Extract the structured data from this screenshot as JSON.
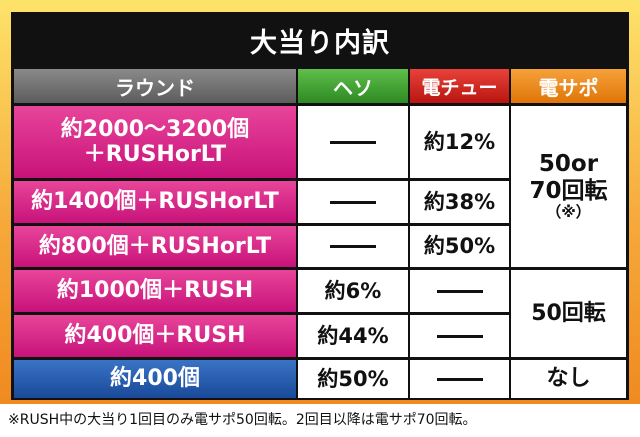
{
  "title": "大当り内訳",
  "headers": {
    "round": "ラウンド",
    "heso": "ヘソ",
    "den_chu": "電チュー",
    "den_sapo": "電サポ"
  },
  "rows": [
    {
      "label_line1": "約2000〜3200個",
      "label_line2": "＋RUSHorLT",
      "heso": "",
      "den_chu": "約12%"
    },
    {
      "label_line1": "約1400個＋RUSHorLT",
      "heso": "",
      "den_chu": "約38%"
    },
    {
      "label_line1": "約800個＋RUSHorLT",
      "heso": "",
      "den_chu": "約50%"
    },
    {
      "label_line1": "約1000個＋RUSH",
      "heso": "約6%",
      "den_chu": ""
    },
    {
      "label_line1": "約400個＋RUSH",
      "heso": "約44%",
      "den_chu": ""
    },
    {
      "label_line1": "約400個",
      "heso": "約50%",
      "den_chu": ""
    }
  ],
  "den_sapo": {
    "group1_line1": "50or",
    "group1_line2": "70回転",
    "group1_line3": "（※）",
    "group2": "50回転",
    "group3": "なし"
  },
  "footnote": "※RUSH中の大当り1回目のみ電サポ50回転。2回目以降は電サポ70回転。",
  "colors": {
    "round_header": "#6e6e6e",
    "heso_header": "#3a9a2c",
    "den_chu_header": "#d0201a",
    "den_sapo_header": "#ee8c1e",
    "row_pink": "#d42784",
    "row_blue": "#2a5fb0",
    "frame": "#f6a93a"
  }
}
